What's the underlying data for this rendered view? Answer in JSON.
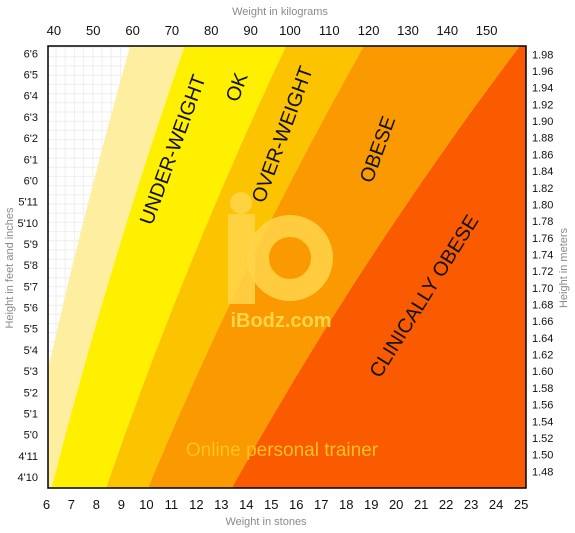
{
  "chart_data": {
    "type": "area",
    "title": "",
    "xlabel_top": "Weight in kilograms",
    "xlabel_bottom": "Weight in stones",
    "ylabel_left": "Height in feet and inches",
    "ylabel_right": "Height in meters",
    "xlim_kg": [
      38.5,
      160
    ],
    "ylim_m": [
      1.46,
      1.99
    ],
    "grid": true,
    "kg_ticks": [
      "40",
      "50",
      "60",
      "70",
      "80",
      "90",
      "100",
      "110",
      "120",
      "130",
      "140",
      "150"
    ],
    "stone_ticks": [
      "6",
      "7",
      "8",
      "9",
      "10",
      "11",
      "12",
      "13",
      "14",
      "15",
      "16",
      "17",
      "18",
      "19",
      "20",
      "21",
      "22",
      "23",
      "24",
      "25"
    ],
    "feet_ticks": [
      "4'10",
      "4'11",
      "5'0",
      "5'1",
      "5'2",
      "5'3",
      "5'4",
      "5'5",
      "5'6",
      "5'7",
      "5'8",
      "5'9",
      "5'10",
      "5'11",
      "6'0",
      "6'1",
      "6'2",
      "6'3",
      "6'4",
      "6'5",
      "6'6"
    ],
    "meter_ticks": [
      "1.48",
      "1.50",
      "1.52",
      "1.54",
      "1.56",
      "1.58",
      "1.60",
      "1.62",
      "1.64",
      "1.66",
      "1.68",
      "1.70",
      "1.72",
      "1.74",
      "1.76",
      "1.78",
      "1.80",
      "1.82",
      "1.84",
      "1.86",
      "1.88",
      "1.90",
      "1.92",
      "1.94",
      "1.96",
      "1.98"
    ],
    "series": [
      {
        "name": "UNDER-WEIGHT",
        "bmi_from": 15,
        "bmi_to": 18.5,
        "color": "#fdeea0"
      },
      {
        "name": "OK",
        "bmi_from": 18.5,
        "bmi_to": 25,
        "color": "#fff000"
      },
      {
        "name": "OVER-WEIGHT",
        "bmi_from": 25,
        "bmi_to": 30,
        "color": "#fbc300"
      },
      {
        "name": "OBESE",
        "bmi_from": 30,
        "bmi_to": 40,
        "color": "#fa9a00"
      },
      {
        "name": "CLINICALLY OBESE",
        "bmi_from": 40,
        "bmi_to": 999,
        "color": "#fa5a00"
      }
    ],
    "white_boundary_bmi": 15
  },
  "watermark": {
    "brand": "iBodz.com",
    "tagline": "Online personal trainer"
  }
}
